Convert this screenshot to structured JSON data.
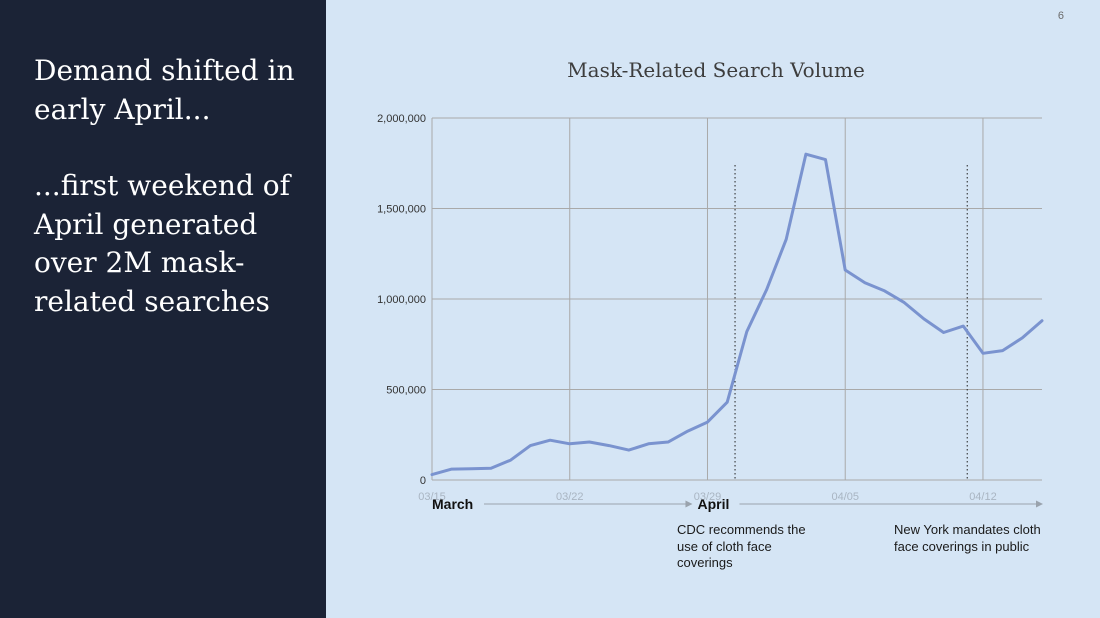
{
  "slide": {
    "heading": "Demand shifted in early April...",
    "subheading": "...first weekend of April generated over 2M mask-related searches",
    "page_number": "6"
  },
  "colors": {
    "left_panel": "#1b2336",
    "background": "#d5e5f5",
    "series_line": "#7a93cf",
    "grid": "#a9a9a9"
  },
  "chart_data": {
    "type": "line",
    "title": "Mask-Related Search Volume",
    "xlabel": "",
    "ylabel": "",
    "ylim": [
      0,
      2000000
    ],
    "y_ticks": [
      0,
      500000,
      1000000,
      1500000,
      2000000
    ],
    "y_tick_labels": [
      "0",
      "500,000",
      "1,000,000",
      "1,500,000",
      "2,000,000"
    ],
    "x_tick_labels": [
      "03/15",
      "03/22",
      "03/29",
      "04/05",
      "04/12"
    ],
    "x_tick_days": [
      0,
      7,
      14,
      21,
      28
    ],
    "x_day_range": [
      0,
      31
    ],
    "grid": true,
    "legend": "none",
    "series": [
      {
        "x": [
          0,
          1,
          2,
          3,
          4,
          5,
          6,
          7,
          8,
          9,
          10,
          11,
          12,
          13,
          14,
          15,
          16,
          17,
          18,
          19,
          20,
          21,
          22,
          23,
          24,
          25,
          26,
          27,
          28,
          29,
          30,
          31
        ],
        "values": [
          30000,
          60000,
          62000,
          65000,
          110000,
          190000,
          220000,
          200000,
          210000,
          190000,
          165000,
          200000,
          210000,
          270000,
          320000,
          430000,
          820000,
          1050000,
          1330000,
          1800000,
          1770000,
          1160000,
          1090000,
          1045000,
          980000,
          890000,
          815000,
          850000,
          700000,
          715000,
          785000,
          880000
        ]
      }
    ],
    "periods": [
      {
        "label": "March",
        "start_day": 0,
        "end_day": 14
      },
      {
        "label": "April",
        "start_day": 14,
        "end_day": 31
      }
    ],
    "annotations": [
      {
        "day": 15.4,
        "text": "CDC recommends the use of cloth face coverings"
      },
      {
        "day": 27.2,
        "text": "New York mandates cloth face coverings in public"
      }
    ]
  }
}
